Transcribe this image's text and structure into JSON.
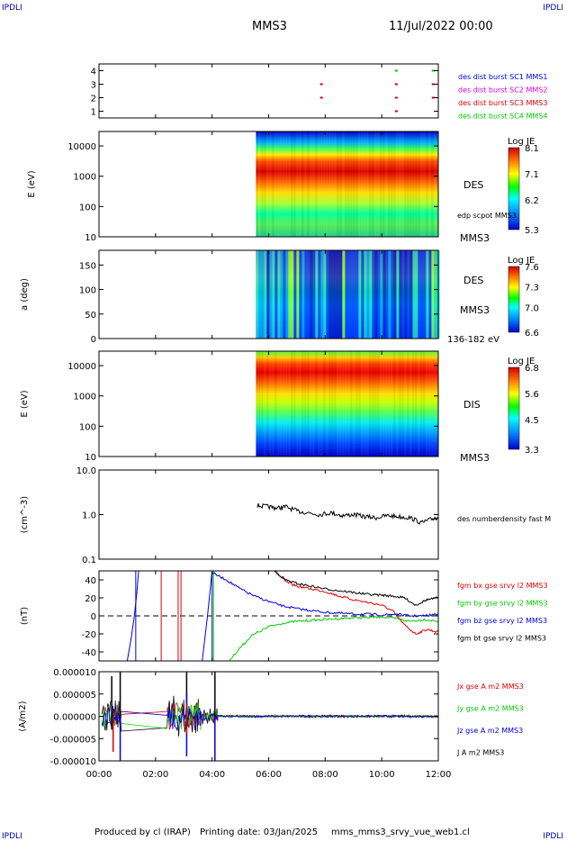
{
  "header": {
    "corner_tl": "IPDLI",
    "corner_tr": "IPDLI",
    "corner_bl": "IPDLI",
    "corner_br": "IPDLI",
    "spacecraft": "MMS3",
    "datetime": "11/Jul/2022 00:00"
  },
  "footer": {
    "produced_by": "Produced by cl (IRAP)",
    "printing_date": "Printing date: 03/Jan/2025",
    "filename": "mms_mms3_srvy_vue_web1.cl"
  },
  "colors": {
    "red": "#dd0000",
    "green": "#00cc00",
    "blue": "#0000dd",
    "magenta": "#dd00dd",
    "black": "#000000"
  },
  "time_axis": {
    "ticks": [
      "00:00",
      "02:00",
      "04:00",
      "06:00",
      "08:00",
      "10:00",
      "12:00"
    ],
    "tick_hours": [
      0,
      2,
      4,
      6,
      8,
      10,
      12
    ],
    "range_hours": [
      0,
      12
    ]
  },
  "chart_data": [
    {
      "id": "burst",
      "type": "scatter",
      "yticks": [
        "1",
        "2",
        "3",
        "4"
      ],
      "ylim": [
        0.5,
        4.5
      ],
      "legend": [
        {
          "label": "des dist burst SC1 MMS1",
          "color": "#0000dd"
        },
        {
          "label": "des dist burst SC2 MMS2",
          "color": "#dd00dd"
        },
        {
          "label": "des dist burst SC3 MMS3",
          "color": "#dd0000"
        },
        {
          "label": "des dist burst SC4 MMS4",
          "color": "#00cc00"
        }
      ],
      "points": [
        {
          "x": 7.85,
          "y": 3,
          "color": "#dd0000"
        },
        {
          "x": 7.85,
          "y": 2,
          "color": "#dd0000"
        },
        {
          "x": 10.5,
          "y": 3,
          "color": "#dd0000"
        },
        {
          "x": 10.5,
          "y": 2,
          "color": "#dd0000"
        },
        {
          "x": 10.5,
          "y": 1,
          "color": "#dd0000"
        },
        {
          "x": 11.8,
          "y": 3,
          "color": "#dd0000"
        },
        {
          "x": 11.8,
          "y": 2,
          "color": "#dd0000"
        },
        {
          "x": 11.8,
          "y": 4,
          "color": "#00cc00"
        },
        {
          "x": 10.5,
          "y": 4,
          "color": "#00cc00"
        }
      ]
    },
    {
      "id": "des_energy",
      "type": "heatmap",
      "ylabel": "E (eV)",
      "yscale": "log",
      "ylim": [
        10,
        30000
      ],
      "yticks": [
        "10",
        "100",
        "1000",
        "10000"
      ],
      "side_label": "DES",
      "extra_label": "edp scpot MMS3",
      "bottom_label": "MMS3",
      "colorbar": {
        "title": "Log JE",
        "max": "8.1",
        "mid1": "7.1",
        "mid2": "6.2",
        "min": "5.3"
      },
      "data_start_hour": 5.55
    },
    {
      "id": "des_pitch",
      "type": "heatmap",
      "ylabel": "a (deg)",
      "ylim": [
        0,
        180
      ],
      "yticks": [
        "0",
        "50",
        "100",
        "150"
      ],
      "side_label": "DES",
      "bottom_label": "MMS3",
      "energy_label": "136-182 eV",
      "colorbar": {
        "title": "Log JE",
        "max": "7.6",
        "mid1": "7.3",
        "mid2": "7.0",
        "min": "6.6"
      },
      "data_start_hour": 5.55
    },
    {
      "id": "dis_energy",
      "type": "heatmap",
      "ylabel": "E (eV)",
      "yscale": "log",
      "ylim": [
        10,
        30000
      ],
      "yticks": [
        "10",
        "100",
        "1000",
        "10000"
      ],
      "side_label": "DIS",
      "bottom_label": "MMS3",
      "colorbar": {
        "title": "Log JE",
        "max": "6.8",
        "mid1": "5.6",
        "mid2": "4.5",
        "min": "3.3"
      },
      "data_start_hour": 5.55
    },
    {
      "id": "density",
      "type": "line",
      "ylabel": "(cm^-3)",
      "yscale": "log",
      "ylim": [
        0.1,
        10
      ],
      "yticks": [
        "0.1",
        "1.0",
        "10.0"
      ],
      "series": [
        {
          "name": "des numberdensity fast M",
          "color": "#000000",
          "x": [
            5.6,
            6.0,
            6.3,
            6.6,
            7.0,
            7.4,
            7.8,
            8.2,
            8.6,
            9.0,
            9.4,
            9.8,
            10.2,
            10.6,
            11.0,
            11.4,
            11.8,
            12.0
          ],
          "y": [
            1.6,
            1.5,
            1.4,
            1.5,
            1.2,
            1.1,
            1.0,
            1.1,
            0.95,
            1.0,
            0.9,
            0.85,
            0.95,
            0.9,
            0.85,
            0.65,
            0.8,
            0.9
          ]
        }
      ]
    },
    {
      "id": "fgm",
      "type": "line",
      "ylabel": "(nT)",
      "ylim": [
        -50,
        50
      ],
      "yticks": [
        "-40",
        "-20",
        "0",
        "20",
        "40"
      ],
      "series": [
        {
          "name": "fgm bx gse srvy l2 MMS3",
          "color": "#dd0000",
          "x": [
            6.2,
            6.6,
            7.0,
            7.5,
            8.0,
            8.5,
            9.0,
            9.5,
            10.0,
            10.4,
            10.8,
            11.2,
            11.6,
            12.0
          ],
          "y": [
            50,
            38,
            33,
            30,
            27,
            22,
            18,
            15,
            12,
            5,
            -10,
            -20,
            -15,
            -18
          ]
        },
        {
          "name": "fgm by gse srvy l2 MMS3",
          "color": "#00cc00",
          "x": [
            4.6,
            5.0,
            5.4,
            6.0,
            6.5,
            7.0,
            7.5,
            8.0,
            8.5,
            9.0,
            9.5,
            10.0,
            10.5,
            11.0,
            11.5,
            12.0
          ],
          "y": [
            -50,
            -35,
            -22,
            -12,
            -8,
            -6,
            -5,
            -4,
            -3,
            -2,
            -2,
            -1,
            -3,
            -6,
            -4,
            -6
          ]
        },
        {
          "name": "fgm bz gse srvy l2 MMS3",
          "color": "#0000dd",
          "x": [
            4.0,
            4.5,
            5.0,
            5.5,
            6.0,
            6.5,
            7.0,
            7.5,
            8.0,
            8.5,
            9.0,
            9.5,
            10.0,
            10.5,
            11.0,
            11.5,
            12.0
          ],
          "y": [
            48,
            40,
            30,
            22,
            16,
            11,
            8,
            6,
            4,
            3,
            2,
            2,
            1,
            2,
            0,
            0,
            2
          ]
        },
        {
          "name": "fgm bt gse srvy l2 MMS3",
          "color": "#000000",
          "x": [
            6.2,
            6.6,
            7.0,
            7.5,
            8.0,
            8.5,
            9.0,
            9.5,
            10.0,
            10.4,
            10.8,
            11.2,
            11.6,
            12.0
          ],
          "y": [
            50,
            40,
            36,
            33,
            30,
            28,
            26,
            24,
            23,
            22,
            20,
            12,
            18,
            20
          ]
        }
      ]
    },
    {
      "id": "current",
      "type": "line",
      "ylabel": "(A/m2)",
      "ylim": [
        -1e-05,
        1e-05
      ],
      "yticks": [
        "-0.000010",
        "-0.000005",
        "0.000000",
        "0.000005",
        "0.000010"
      ],
      "series": [
        {
          "name": "Jx gse A m2 MMS3",
          "color": "#dd0000"
        },
        {
          "name": "Jy gse A m2 MMS3",
          "color": "#00cc00"
        },
        {
          "name": "Jz gse A m2 MMS3",
          "color": "#0000dd"
        },
        {
          "name": "J A m2 MMS3",
          "color": "#000000"
        }
      ]
    }
  ]
}
